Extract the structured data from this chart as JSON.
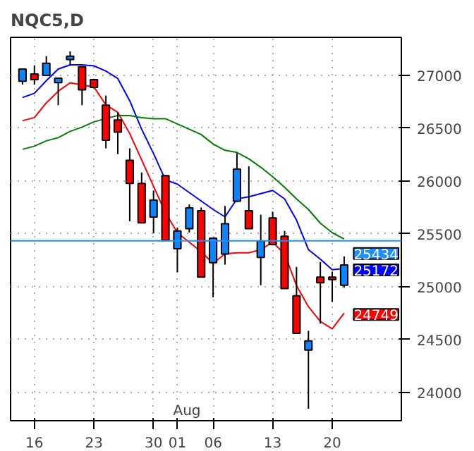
{
  "chart_data": {
    "type": "candlestick",
    "title": "NQC5,D",
    "categories": [
      null,
      "16",
      null,
      null,
      null,
      null,
      "23",
      null,
      null,
      null,
      null,
      "30",
      null,
      "01",
      null,
      null,
      "06",
      null,
      null,
      null,
      null,
      "13",
      null,
      null,
      null,
      null,
      "20",
      null
    ],
    "ohlc": [
      [
        26945,
        27059,
        26913,
        27059
      ],
      [
        27013,
        27095,
        26913,
        26959
      ],
      [
        27000,
        27182,
        27000,
        27114
      ],
      [
        26932,
        26973,
        26718,
        26973
      ],
      [
        27150,
        27227,
        27091,
        27182
      ],
      [
        27082,
        27082,
        26718,
        26863
      ],
      [
        26959,
        26968,
        26877,
        26886
      ],
      [
        26718,
        26809,
        26309,
        26386
      ],
      [
        26577,
        26650,
        26254,
        26463
      ],
      [
        26195,
        26309,
        25618,
        25977
      ],
      [
        25977,
        26081,
        25604,
        25604
      ],
      [
        25658,
        25909,
        25504,
        25818
      ],
      [
        26050,
        26059,
        25436,
        25436
      ],
      [
        25358,
        25558,
        25136,
        25527
      ],
      [
        25549,
        25777,
        25513,
        25745
      ],
      [
        25718,
        25749,
        25090,
        25090
      ],
      [
        25226,
        25458,
        24899,
        25458
      ],
      [
        25308,
        25763,
        25208,
        25595
      ],
      [
        25808,
        26263,
        25800,
        26113
      ],
      [
        25718,
        26140,
        25549,
        25549
      ],
      [
        25276,
        25681,
        25013,
        25431
      ],
      [
        25650,
        25709,
        25390,
        25399
      ],
      [
        25477,
        25527,
        24981,
        24981
      ],
      [
        24913,
        25186,
        24558,
        24558
      ],
      [
        24399,
        24581,
        23844,
        24485
      ],
      [
        25090,
        25231,
        24649,
        25036
      ],
      [
        25090,
        25140,
        24854,
        25067
      ],
      [
        25013,
        25286,
        24990,
        25204
      ]
    ],
    "colors": [
      "#0a84ff",
      "#ff0000",
      "#0a84ff",
      "#0a84ff",
      "#0a84ff",
      "#ff0000",
      "#ff0000",
      "#ff0000",
      "#ff0000",
      "#ff0000",
      "#ff0000",
      "#0a84ff",
      "#ff0000",
      "#0a84ff",
      "#0a84ff",
      "#ff0000",
      "#0a84ff",
      "#0a84ff",
      "#0a84ff",
      "#ff0000",
      "#0a84ff",
      "#ff0000",
      "#ff0000",
      "#ff0000",
      "#0a84ff",
      "#ff0000",
      "#ff0000",
      "#0a84ff"
    ],
    "series": [
      {
        "type": "line",
        "color": "#ff0000",
        "values": [
          26570,
          26600,
          26740,
          26850,
          26930,
          26910,
          26890,
          26720,
          26650,
          26450,
          26200,
          25950,
          25700,
          25510,
          25420,
          25330,
          25220,
          25310,
          25320,
          25320,
          25350,
          25420,
          25310,
          25010,
          24810,
          24670,
          24600,
          24749
        ],
        "value_labels": [
          null,
          null,
          null,
          null,
          null,
          null,
          null,
          null,
          null,
          null,
          null,
          null,
          null,
          null,
          null,
          null,
          null,
          null,
          null,
          null,
          null,
          null,
          null,
          null,
          null,
          null,
          null,
          "24749"
        ]
      },
      {
        "type": "line",
        "color": "#0000ff",
        "values": [
          26790,
          26830,
          26950,
          27060,
          27100,
          27100,
          27090,
          27040,
          26970,
          26760,
          26490,
          26260,
          26010,
          25970,
          25890,
          25810,
          25730,
          25660,
          25830,
          25850,
          25880,
          25910,
          25830,
          25630,
          25350,
          25260,
          25160,
          25172
        ],
        "value_labels": [
          null,
          null,
          null,
          null,
          null,
          null,
          null,
          null,
          null,
          null,
          null,
          null,
          null,
          null,
          null,
          null,
          null,
          null,
          null,
          null,
          null,
          null,
          null,
          null,
          null,
          null,
          null,
          "25172"
        ]
      },
      {
        "type": "line",
        "color": "#008000",
        "values": [
          26300,
          26330,
          26380,
          26410,
          26470,
          26510,
          26560,
          26590,
          26620,
          26620,
          26600,
          26590,
          26590,
          26540,
          26490,
          26440,
          26350,
          26290,
          26270,
          26210,
          26130,
          26040,
          25940,
          25830,
          25730,
          25600,
          25510,
          25450
        ]
      }
    ],
    "ylim": [
      23730,
      27360
    ],
    "yticks": [
      24000,
      24500,
      25000,
      25500,
      26000,
      26500,
      27000
    ],
    "grid": true,
    "ref_lines": [
      {
        "axis": "y",
        "value": 25434,
        "label": "25434",
        "color": "#1e8fff"
      }
    ],
    "annotations": [
      "Aug"
    ]
  }
}
